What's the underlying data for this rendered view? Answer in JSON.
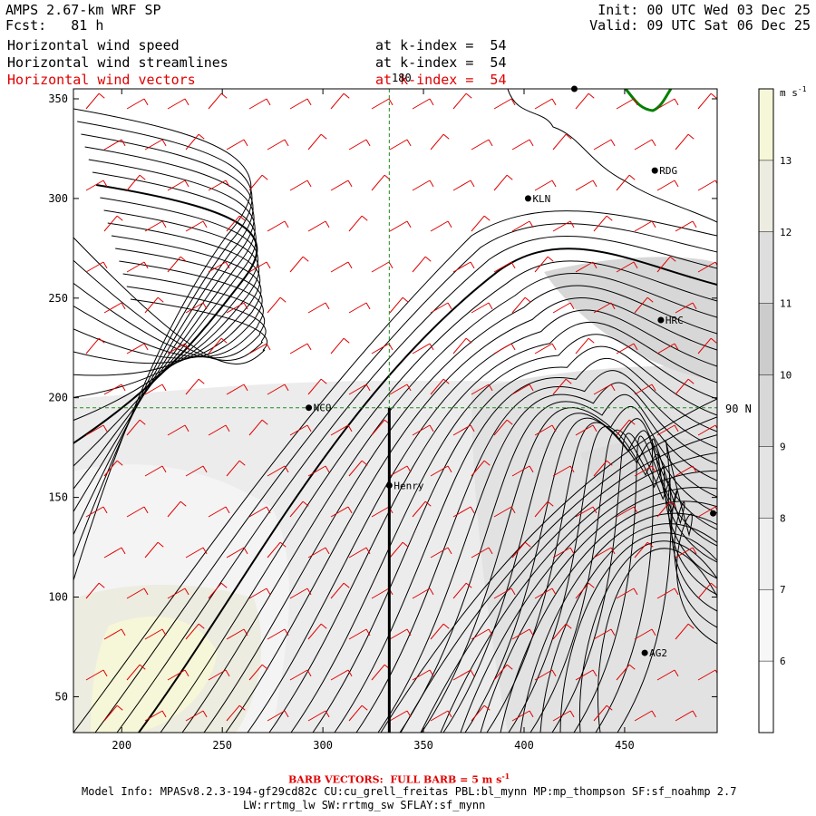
{
  "header": {
    "title": "AMPS 2.67-km WRF SP",
    "forecast": "Fcst:   81 h",
    "init": "Init: 00 UTC Wed 03 Dec 25",
    "valid": "Valid: 09 UTC Sat 06 Dec 25",
    "fields": [
      {
        "name": "Horizontal wind speed",
        "level": "at k-index =  54"
      },
      {
        "name": "Horizontal wind streamlines",
        "level": "at k-index =  54"
      },
      {
        "name": "Horizontal wind vectors",
        "level": "at k-index =  54"
      }
    ]
  },
  "map": {
    "x_axis": {
      "min": 176,
      "max": 496,
      "ticks": [
        "200",
        "250",
        "300",
        "350",
        "400",
        "450"
      ],
      "tick_values": [
        200,
        250,
        300,
        350,
        400,
        450
      ]
    },
    "y_axis": {
      "min": 32,
      "max": 355,
      "ticks": [
        "50",
        "100",
        "150",
        "200",
        "250",
        "300",
        "350"
      ],
      "tick_values": [
        50,
        100,
        150,
        200,
        250,
        300,
        350
      ]
    },
    "meridian_label": "180",
    "parallel_label": "90 N",
    "meridian_x": 333,
    "parallel_y": 195,
    "stations": [
      {
        "name": "RDG",
        "x": 465,
        "y": 314
      },
      {
        "name": "KLN",
        "x": 402,
        "y": 300
      },
      {
        "name": "HRC",
        "x": 468,
        "y": 239
      },
      {
        "name": "NCO",
        "x": 293,
        "y": 195
      },
      {
        "name": "Henry",
        "x": 333,
        "y": 156
      },
      {
        "name": "AG2",
        "x": 460,
        "y": 72
      },
      {
        "name": "",
        "x": 494,
        "y": 142
      },
      {
        "name": "",
        "x": 425,
        "y": 355
      }
    ]
  },
  "colorbar": {
    "unit": "m s",
    "unit_exp": "-1",
    "labels": [
      "13",
      "12",
      "11",
      "10",
      "9",
      "8",
      "7",
      "6"
    ],
    "label_values": [
      13,
      12,
      11,
      10,
      9,
      8,
      7,
      6
    ],
    "min": 5,
    "max": 14,
    "colors": [
      "#ffffff",
      "#f7f7f7",
      "#efefef",
      "#e4e4e4",
      "#d8d8d8",
      "#cccccc",
      "#dedede",
      "#ecece0",
      "#f6f6d8"
    ]
  },
  "footer": {
    "barb_note": "BARB VECTORS:  FULL BARB = 5 m s",
    "barb_exp": "-1",
    "model_info": "Model Info: MPASv8.2.3-194-gf29cd82c CU:cu_grell_freitas PBL:bl_mynn MP:mp_thompson SF:sf_noahmp 2.7",
    "model_info2": "LW:rrtmg_lw SW:rrtmg_sw SFLAY:sf_mynn"
  },
  "colors": {
    "barbs": "#e00000",
    "grid": "#228b22",
    "coast": "#008000"
  }
}
